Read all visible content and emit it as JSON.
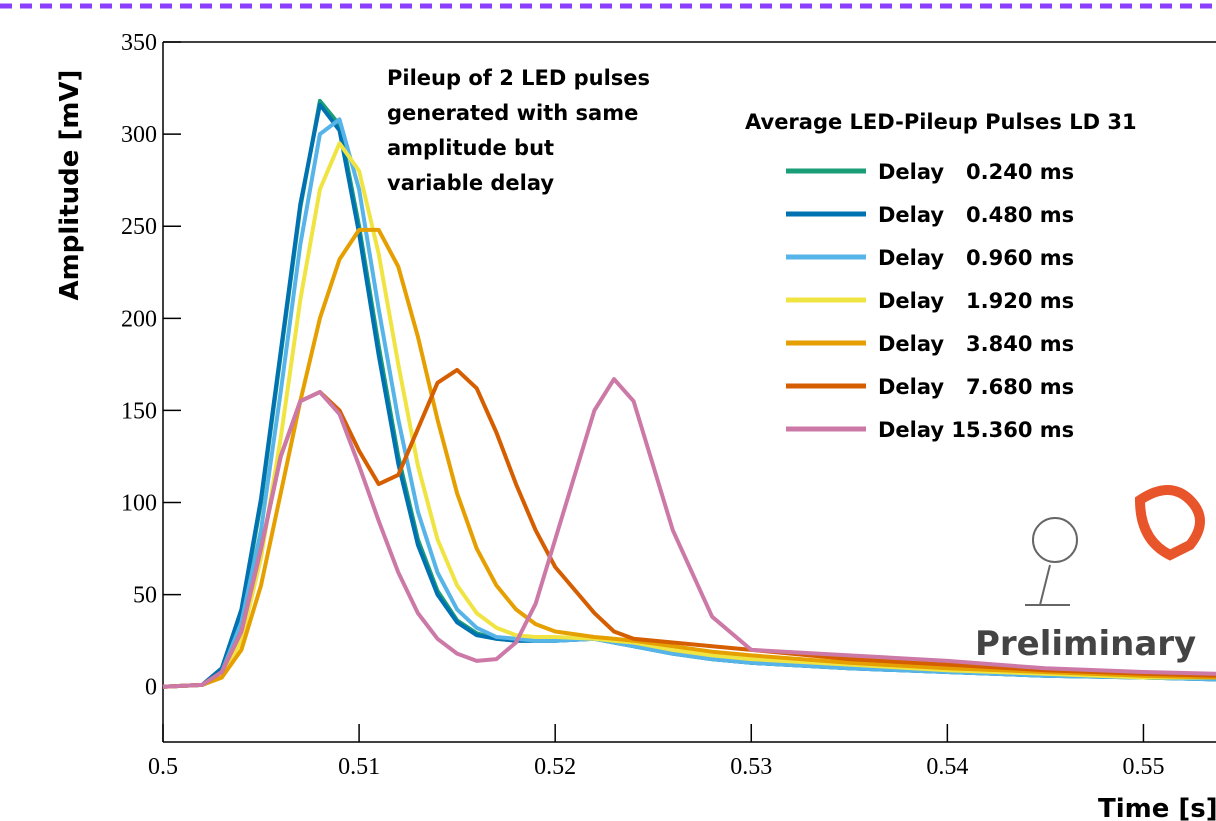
{
  "chart_data": {
    "type": "line",
    "annotation": [
      "Pileup of 2 LED pulses",
      "generated with same",
      "amplitude but",
      "variable delay"
    ],
    "legend_title": "Average LED-Pileup Pulses LD 31",
    "watermark": "Preliminary",
    "x_label": "Time [s]",
    "y_label": "Amplitude [mV]",
    "x": [
      0.5,
      0.502,
      0.503,
      0.504,
      0.505,
      0.506,
      0.507,
      0.508,
      0.509,
      0.51,
      0.511,
      0.512,
      0.513,
      0.514,
      0.515,
      0.516,
      0.517,
      0.518,
      0.519,
      0.52,
      0.522,
      0.523,
      0.524,
      0.526,
      0.528,
      0.53,
      0.535,
      0.54,
      0.545,
      0.55,
      0.5537
    ],
    "series": [
      {
        "name": "Delay   0.240 ms",
        "color": "#1a9e77",
        "values": [
          0,
          1,
          10,
          40,
          100,
          180,
          260,
          318,
          305,
          250,
          185,
          125,
          80,
          52,
          36,
          29,
          26,
          25,
          25,
          25,
          26,
          24,
          22,
          18,
          15,
          13,
          10,
          8,
          6,
          5,
          4
        ]
      },
      {
        "name": "Delay   0.480 ms",
        "color": "#0072b2",
        "values": [
          0,
          1,
          10,
          42,
          102,
          182,
          262,
          316,
          302,
          246,
          180,
          121,
          77,
          50,
          35,
          28,
          26,
          25,
          25,
          25,
          26,
          24,
          22,
          18,
          15,
          13,
          10,
          8,
          6,
          5,
          4
        ]
      },
      {
        "name": "Delay   0.960 ms",
        "color": "#56b4e9",
        "values": [
          0,
          1,
          8,
          35,
          85,
          160,
          240,
          300,
          308,
          270,
          205,
          145,
          95,
          62,
          42,
          32,
          27,
          26,
          25,
          25,
          26,
          24,
          22,
          18,
          15,
          13,
          10,
          8,
          6,
          5,
          4
        ]
      },
      {
        "name": "Delay   1.920 ms",
        "color": "#f0e442",
        "values": [
          0,
          1,
          5,
          25,
          70,
          135,
          210,
          270,
          295,
          280,
          235,
          175,
          120,
          80,
          55,
          40,
          32,
          28,
          27,
          27,
          26,
          25,
          24,
          20,
          17,
          15,
          12,
          9,
          7,
          5,
          5
        ]
      },
      {
        "name": "Delay   3.840 ms",
        "color": "#e69f00",
        "values": [
          0,
          1,
          5,
          20,
          55,
          105,
          155,
          200,
          232,
          248,
          248,
          228,
          190,
          145,
          105,
          75,
          55,
          42,
          34,
          30,
          27,
          26,
          25,
          22,
          19,
          17,
          13,
          10,
          8,
          6,
          5
        ]
      },
      {
        "name": "Delay   7.680 ms",
        "color": "#d55e00",
        "values": [
          0,
          1,
          8,
          30,
          75,
          125,
          155,
          160,
          150,
          128,
          110,
          115,
          140,
          165,
          172,
          162,
          138,
          110,
          85,
          65,
          40,
          30,
          26,
          24,
          22,
          20,
          15,
          12,
          9,
          7,
          6
        ]
      },
      {
        "name": "Delay 15.360 ms",
        "color": "#cc79a7",
        "values": [
          0,
          1,
          8,
          30,
          75,
          125,
          155,
          160,
          148,
          120,
          90,
          62,
          40,
          26,
          18,
          14,
          15,
          24,
          45,
          80,
          150,
          167,
          155,
          85,
          38,
          20,
          17,
          14,
          10,
          8,
          7
        ]
      }
    ],
    "xlim": [
      0.5,
      0.5537
    ],
    "xticks": [
      0.5,
      0.51,
      0.52,
      0.53,
      0.54,
      0.55
    ],
    "ylim": [
      -30,
      350
    ],
    "yticks": [
      0,
      50,
      100,
      150,
      200,
      250,
      300,
      350
    ]
  }
}
